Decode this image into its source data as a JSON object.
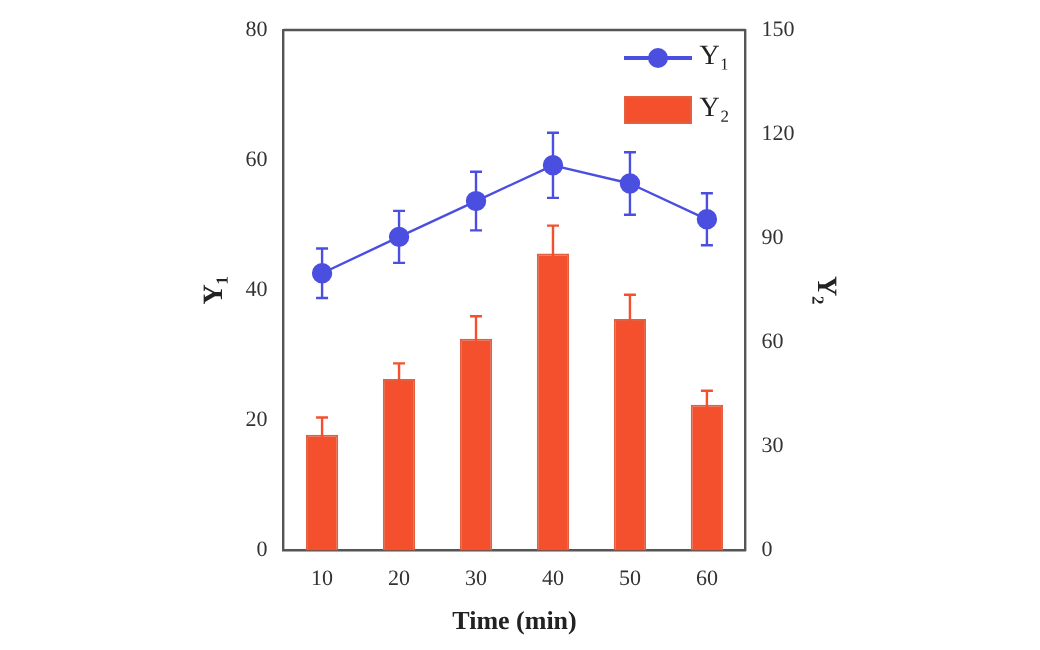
{
  "chart_data": {
    "type": "bar",
    "xlabel": "Time (min)",
    "ylabel": "Y₁",
    "y2label": "Y₂",
    "categories": [
      "10",
      "20",
      "30",
      "40",
      "50",
      "60"
    ],
    "series": [
      {
        "name": "Y₁",
        "type": "line",
        "color": "#4b4fe0",
        "values": [
          42.6,
          48.2,
          53.7,
          59.2,
          56.4,
          50.9
        ],
        "errors": [
          3.8,
          4,
          4.5,
          5,
          4.8,
          4
        ]
      },
      {
        "name": "Y₂",
        "axis": "y2",
        "color": "#f4502e",
        "values": [
          33.3,
          49.4,
          61,
          85.6,
          66.7,
          42
        ],
        "errors": [
          5,
          4.5,
          6.5,
          8,
          7,
          4
        ]
      }
    ],
    "ylim": [
      0,
      80
    ],
    "yticks": [
      0,
      20,
      40,
      60,
      80
    ],
    "y2lim": [
      0,
      150
    ],
    "y2ticks": [
      0,
      30,
      60,
      90,
      120,
      150
    ],
    "marker": "circle",
    "line_style": "solid",
    "grid": false,
    "legend": "top right"
  }
}
